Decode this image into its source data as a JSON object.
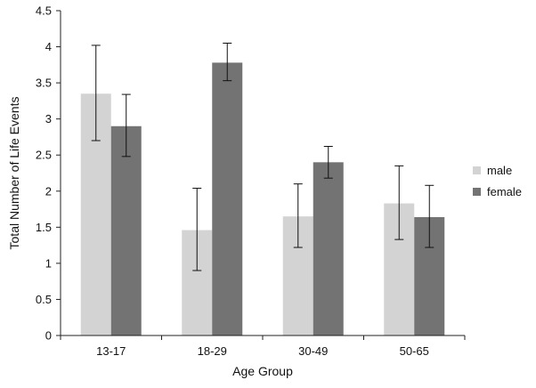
{
  "chart_data": {
    "type": "bar",
    "title": "",
    "xlabel": "Age Group",
    "ylabel": "Total Number of Life Events",
    "categories": [
      "13-17",
      "18-29",
      "30-49",
      "50-65"
    ],
    "ylim": [
      0,
      4.5
    ],
    "yticks": [
      "0",
      "0.5",
      "1",
      "1.5",
      "2",
      "2.5",
      "3",
      "3.5",
      "4",
      "4.5"
    ],
    "grid": false,
    "legend_position": "right",
    "series": [
      {
        "name": "male",
        "color": "#d3d3d3",
        "values": [
          3.35,
          1.46,
          1.65,
          1.83
        ],
        "error_low": [
          2.7,
          0.9,
          1.22,
          1.33
        ],
        "error_high": [
          4.02,
          2.04,
          2.1,
          2.35
        ]
      },
      {
        "name": "female",
        "color": "#737373",
        "values": [
          2.9,
          3.78,
          2.4,
          1.64
        ],
        "error_low": [
          2.48,
          3.53,
          2.18,
          1.22
        ],
        "error_high": [
          3.34,
          4.05,
          2.62,
          2.08
        ]
      }
    ]
  }
}
